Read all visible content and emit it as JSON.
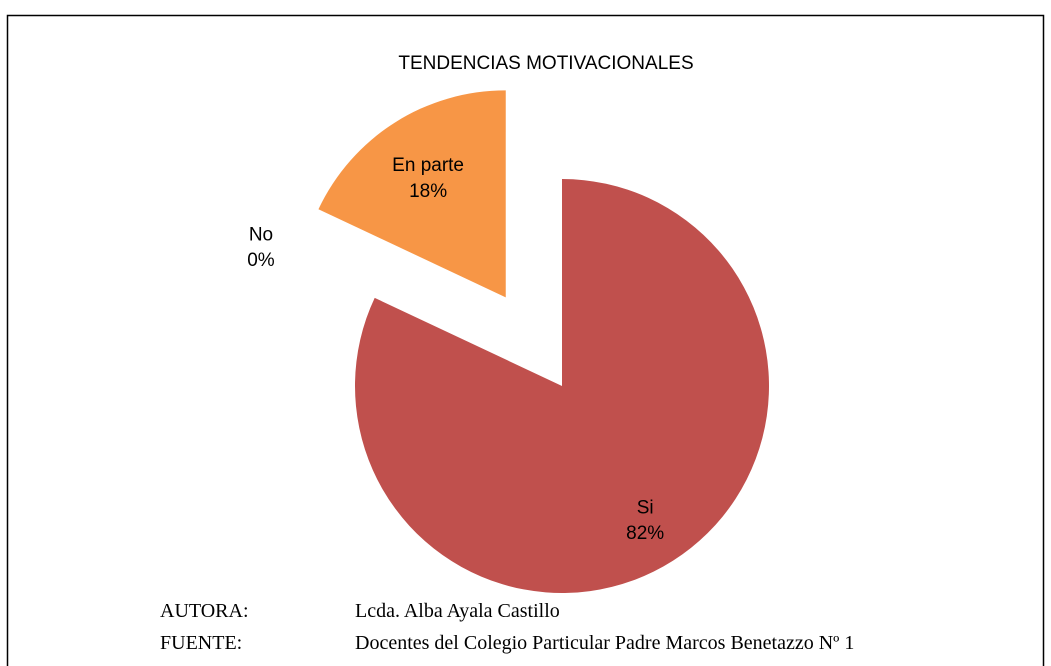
{
  "chart_data": {
    "type": "pie",
    "title": "TENDENCIAS MOTIVACIONALES",
    "categories": [
      "Si",
      "No",
      "En parte"
    ],
    "values": [
      82,
      0,
      18
    ],
    "value_labels": [
      "82%",
      "0%",
      "18%"
    ],
    "colors": [
      "#C0504D",
      "#4F81BD",
      "#F79646"
    ]
  },
  "footer": [
    {
      "label": "AUTORA:",
      "text": "Lcda. Alba Ayala Castillo"
    },
    {
      "label": "FUENTE:",
      "text": "Docentes del Colegio Particular Padre Marcos Benetazzo Nº 1"
    }
  ]
}
